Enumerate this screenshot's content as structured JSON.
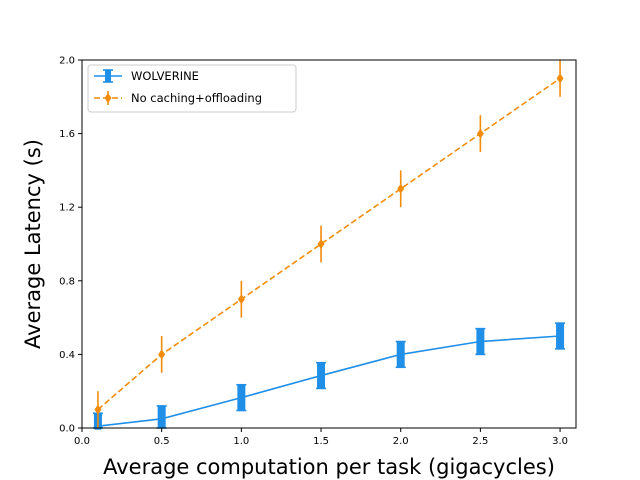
{
  "chart_data": {
    "type": "line",
    "title": "",
    "xlabel": "Average computation per task (gigacycles)",
    "ylabel": "Average Latency (s)",
    "xlim": [
      0.0,
      3.1
    ],
    "ylim": [
      0.0,
      2.0
    ],
    "x_ticks": [
      "0.0",
      "0.5",
      "1.0",
      "1.5",
      "2.0",
      "2.5",
      "3.0"
    ],
    "y_ticks": [
      "0.0",
      "0.4",
      "0.8",
      "1.2",
      "1.6",
      "2.0"
    ],
    "grid": false,
    "legend_position": "upper-left",
    "series": [
      {
        "name": "WOLVERINE",
        "color": "#1f8fe8",
        "line_style": "solid",
        "marker": "square",
        "x": [
          0.1,
          0.5,
          1.0,
          1.5,
          2.0,
          2.5,
          3.0
        ],
        "y": [
          0.01,
          0.05,
          0.165,
          0.285,
          0.4,
          0.47,
          0.5
        ],
        "error": [
          0.07,
          0.07,
          0.07,
          0.07,
          0.07,
          0.07,
          0.07
        ]
      },
      {
        "name": "No caching+offloading",
        "color": "#f28c0a",
        "line_style": "dashed",
        "marker": "diamond",
        "x": [
          0.1,
          0.5,
          1.0,
          1.5,
          2.0,
          2.5,
          3.0
        ],
        "y": [
          0.1,
          0.4,
          0.7,
          1.0,
          1.3,
          1.6,
          1.9
        ],
        "error": [
          0.1,
          0.1,
          0.1,
          0.1,
          0.1,
          0.1,
          0.1
        ]
      }
    ]
  }
}
